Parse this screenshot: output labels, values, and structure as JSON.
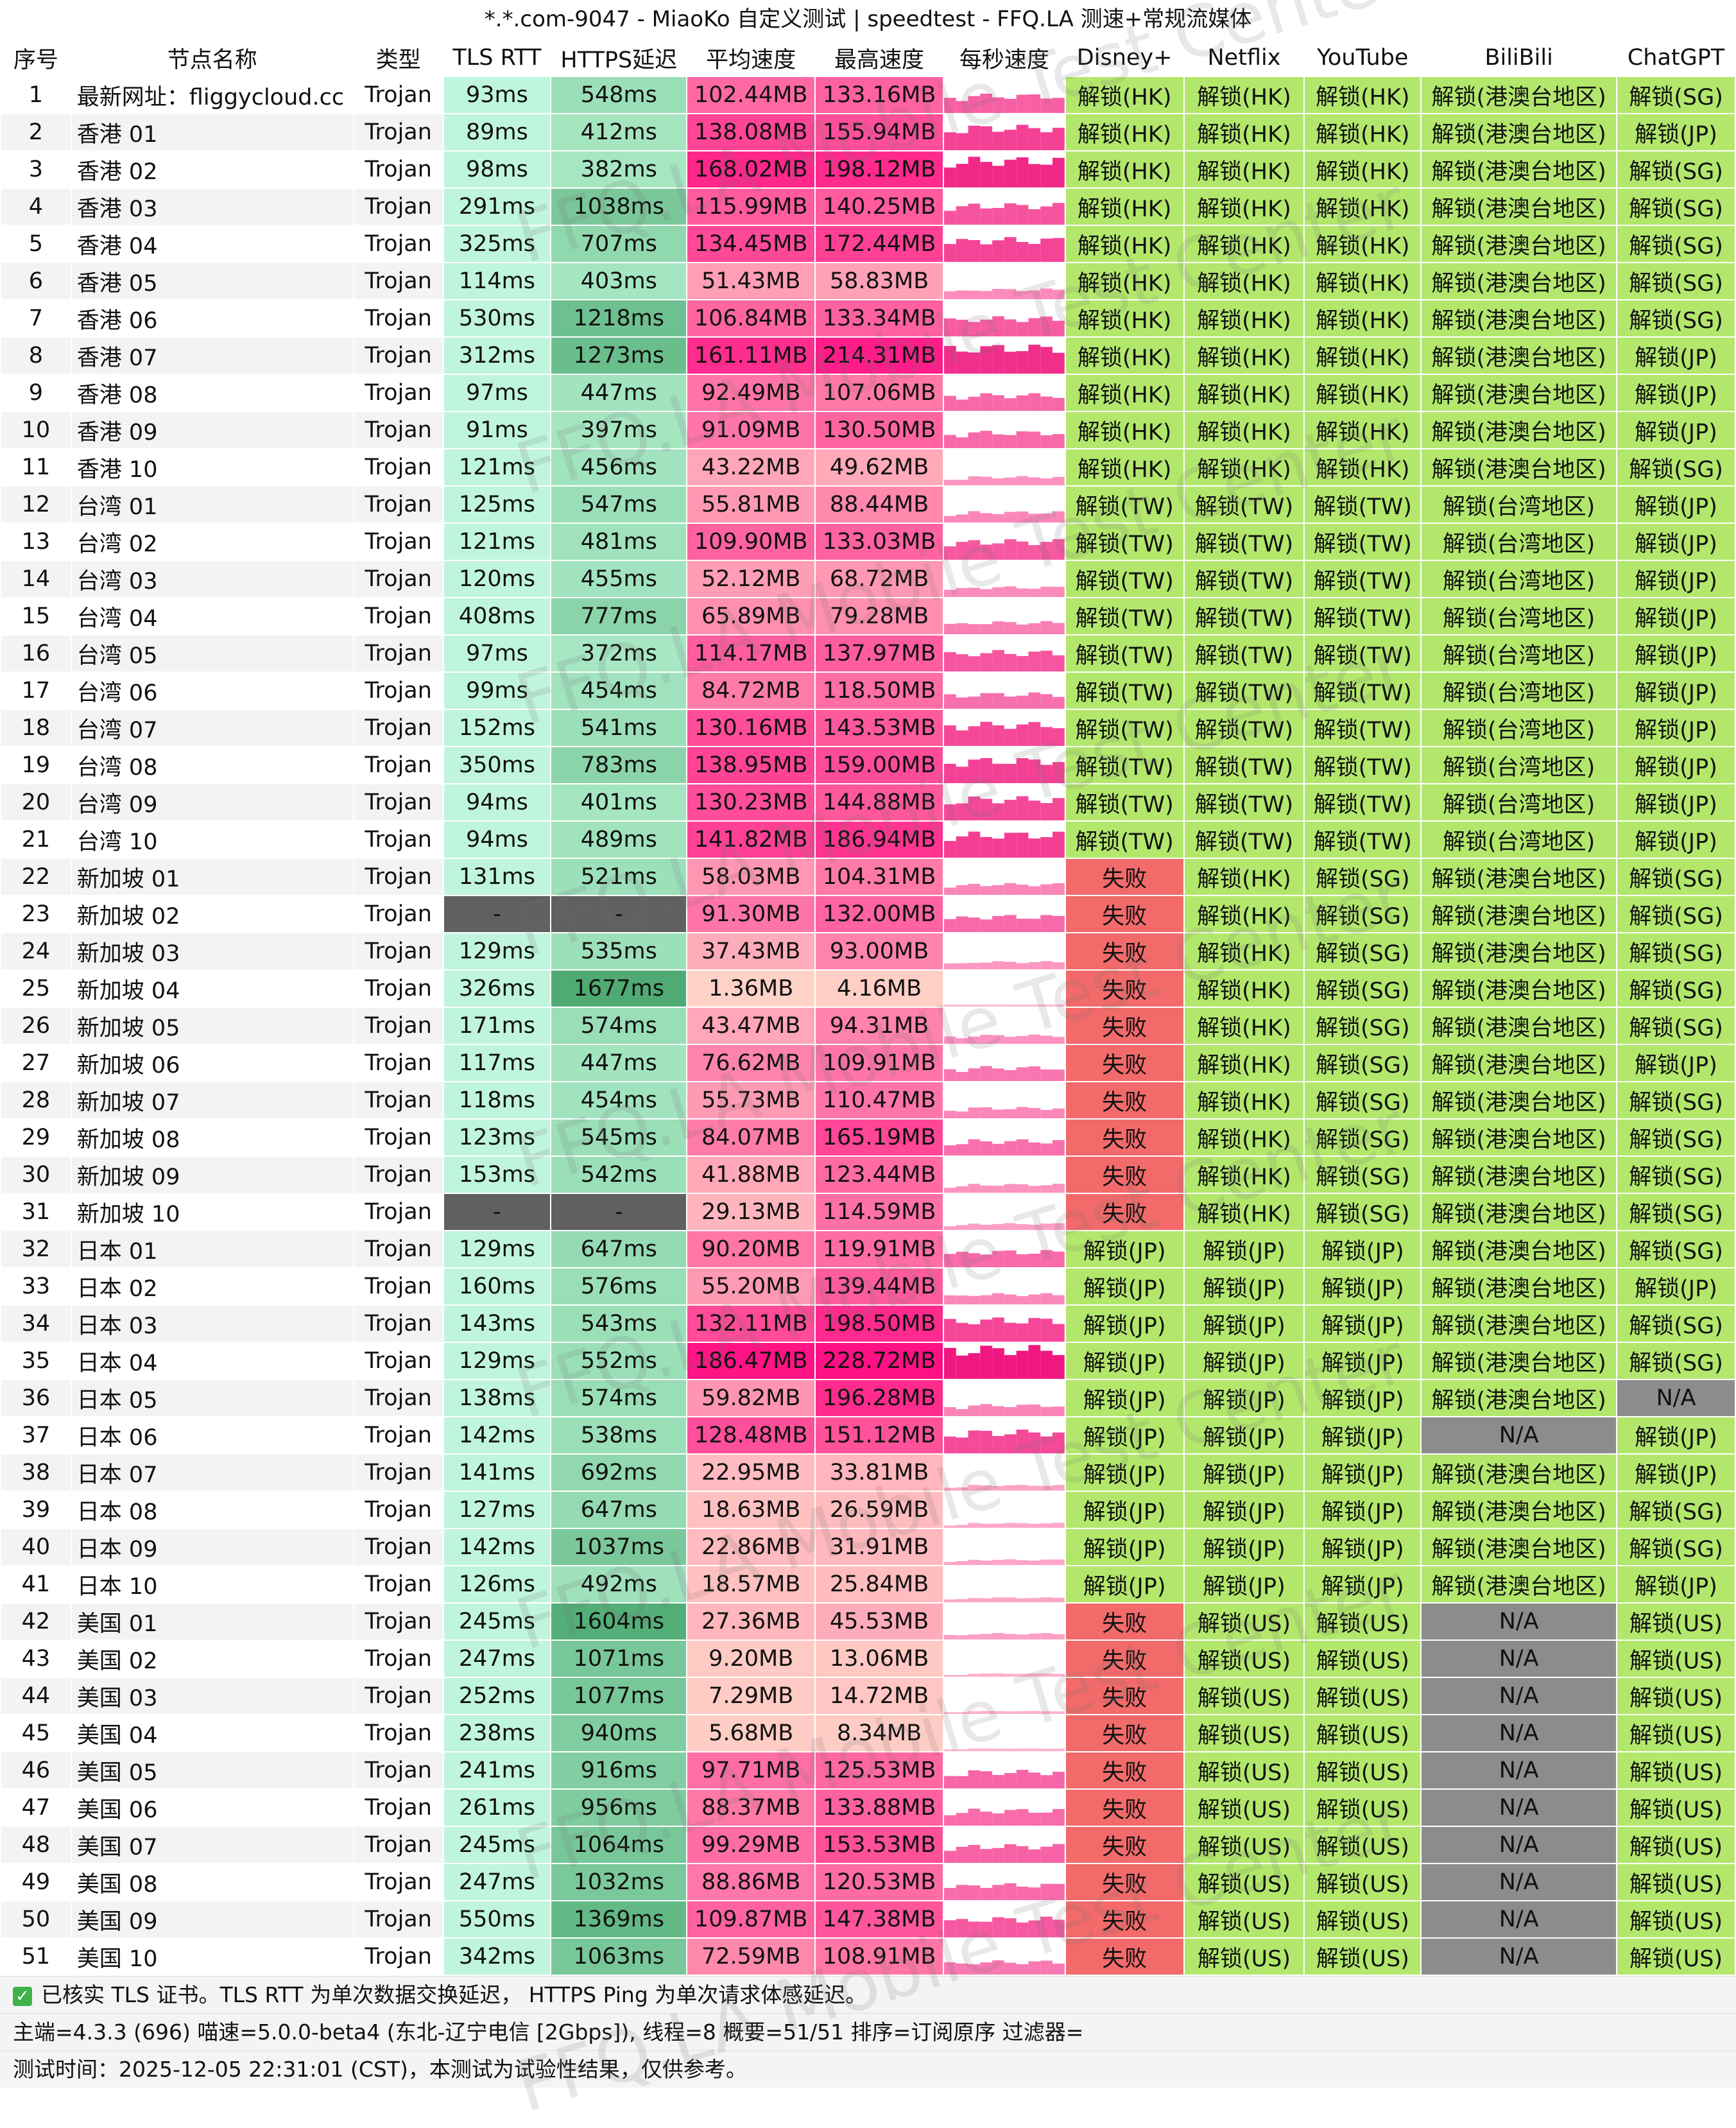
{
  "title": "*.*.com-9047 - MiaoKo 自定义测试 | speedtest - FFQ.LA 测速+常规流媒体",
  "columns": [
    "序号",
    "节点名称",
    "类型",
    "TLS RTT",
    "HTTPS延迟",
    "平均速度",
    "最高速度",
    "每秒速度",
    "Disney+",
    "Netflix",
    "YouTube",
    "BiliBili",
    "ChatGPT"
  ],
  "rows": [
    [
      "1",
      "最新网址：fliggycloud.cc",
      "Trojan",
      "93ms",
      "548ms",
      "102.44MB",
      "133.16MB",
      "解锁(HK)",
      "解锁(HK)",
      "解锁(HK)",
      "解锁(港澳台地区)",
      "解锁(SG)"
    ],
    [
      "2",
      "香港 01",
      "Trojan",
      "89ms",
      "412ms",
      "138.08MB",
      "155.94MB",
      "解锁(HK)",
      "解锁(HK)",
      "解锁(HK)",
      "解锁(港澳台地区)",
      "解锁(JP)"
    ],
    [
      "3",
      "香港 02",
      "Trojan",
      "98ms",
      "382ms",
      "168.02MB",
      "198.12MB",
      "解锁(HK)",
      "解锁(HK)",
      "解锁(HK)",
      "解锁(港澳台地区)",
      "解锁(SG)"
    ],
    [
      "4",
      "香港 03",
      "Trojan",
      "291ms",
      "1038ms",
      "115.99MB",
      "140.25MB",
      "解锁(HK)",
      "解锁(HK)",
      "解锁(HK)",
      "解锁(港澳台地区)",
      "解锁(SG)"
    ],
    [
      "5",
      "香港 04",
      "Trojan",
      "325ms",
      "707ms",
      "134.45MB",
      "172.44MB",
      "解锁(HK)",
      "解锁(HK)",
      "解锁(HK)",
      "解锁(港澳台地区)",
      "解锁(SG)"
    ],
    [
      "6",
      "香港 05",
      "Trojan",
      "114ms",
      "403ms",
      "51.43MB",
      "58.83MB",
      "解锁(HK)",
      "解锁(HK)",
      "解锁(HK)",
      "解锁(港澳台地区)",
      "解锁(SG)"
    ],
    [
      "7",
      "香港 06",
      "Trojan",
      "530ms",
      "1218ms",
      "106.84MB",
      "133.34MB",
      "解锁(HK)",
      "解锁(HK)",
      "解锁(HK)",
      "解锁(港澳台地区)",
      "解锁(SG)"
    ],
    [
      "8",
      "香港 07",
      "Trojan",
      "312ms",
      "1273ms",
      "161.11MB",
      "214.31MB",
      "解锁(HK)",
      "解锁(HK)",
      "解锁(HK)",
      "解锁(港澳台地区)",
      "解锁(JP)"
    ],
    [
      "9",
      "香港 08",
      "Trojan",
      "97ms",
      "447ms",
      "92.49MB",
      "107.06MB",
      "解锁(HK)",
      "解锁(HK)",
      "解锁(HK)",
      "解锁(港澳台地区)",
      "解锁(JP)"
    ],
    [
      "10",
      "香港 09",
      "Trojan",
      "91ms",
      "397ms",
      "91.09MB",
      "130.50MB",
      "解锁(HK)",
      "解锁(HK)",
      "解锁(HK)",
      "解锁(港澳台地区)",
      "解锁(JP)"
    ],
    [
      "11",
      "香港 10",
      "Trojan",
      "121ms",
      "456ms",
      "43.22MB",
      "49.62MB",
      "解锁(HK)",
      "解锁(HK)",
      "解锁(HK)",
      "解锁(港澳台地区)",
      "解锁(SG)"
    ],
    [
      "12",
      "台湾 01",
      "Trojan",
      "125ms",
      "547ms",
      "55.81MB",
      "88.44MB",
      "解锁(TW)",
      "解锁(TW)",
      "解锁(TW)",
      "解锁(台湾地区)",
      "解锁(JP)"
    ],
    [
      "13",
      "台湾 02",
      "Trojan",
      "121ms",
      "481ms",
      "109.90MB",
      "133.03MB",
      "解锁(TW)",
      "解锁(TW)",
      "解锁(TW)",
      "解锁(台湾地区)",
      "解锁(JP)"
    ],
    [
      "14",
      "台湾 03",
      "Trojan",
      "120ms",
      "455ms",
      "52.12MB",
      "68.72MB",
      "解锁(TW)",
      "解锁(TW)",
      "解锁(TW)",
      "解锁(台湾地区)",
      "解锁(JP)"
    ],
    [
      "15",
      "台湾 04",
      "Trojan",
      "408ms",
      "777ms",
      "65.89MB",
      "79.28MB",
      "解锁(TW)",
      "解锁(TW)",
      "解锁(TW)",
      "解锁(台湾地区)",
      "解锁(JP)"
    ],
    [
      "16",
      "台湾 05",
      "Trojan",
      "97ms",
      "372ms",
      "114.17MB",
      "137.97MB",
      "解锁(TW)",
      "解锁(TW)",
      "解锁(TW)",
      "解锁(台湾地区)",
      "解锁(JP)"
    ],
    [
      "17",
      "台湾 06",
      "Trojan",
      "99ms",
      "454ms",
      "84.72MB",
      "118.50MB",
      "解锁(TW)",
      "解锁(TW)",
      "解锁(TW)",
      "解锁(台湾地区)",
      "解锁(JP)"
    ],
    [
      "18",
      "台湾 07",
      "Trojan",
      "152ms",
      "541ms",
      "130.16MB",
      "143.53MB",
      "解锁(TW)",
      "解锁(TW)",
      "解锁(TW)",
      "解锁(台湾地区)",
      "解锁(JP)"
    ],
    [
      "19",
      "台湾 08",
      "Trojan",
      "350ms",
      "783ms",
      "138.95MB",
      "159.00MB",
      "解锁(TW)",
      "解锁(TW)",
      "解锁(TW)",
      "解锁(台湾地区)",
      "解锁(JP)"
    ],
    [
      "20",
      "台湾 09",
      "Trojan",
      "94ms",
      "401ms",
      "130.23MB",
      "144.88MB",
      "解锁(TW)",
      "解锁(TW)",
      "解锁(TW)",
      "解锁(台湾地区)",
      "解锁(JP)"
    ],
    [
      "21",
      "台湾 10",
      "Trojan",
      "94ms",
      "489ms",
      "141.82MB",
      "186.94MB",
      "解锁(TW)",
      "解锁(TW)",
      "解锁(TW)",
      "解锁(台湾地区)",
      "解锁(JP)"
    ],
    [
      "22",
      "新加坡 01",
      "Trojan",
      "131ms",
      "521ms",
      "58.03MB",
      "104.31MB",
      "失败",
      "解锁(HK)",
      "解锁(SG)",
      "解锁(港澳台地区)",
      "解锁(SG)"
    ],
    [
      "23",
      "新加坡 02",
      "Trojan",
      "-",
      "-",
      "91.30MB",
      "132.00MB",
      "失败",
      "解锁(HK)",
      "解锁(SG)",
      "解锁(港澳台地区)",
      "解锁(SG)"
    ],
    [
      "24",
      "新加坡 03",
      "Trojan",
      "129ms",
      "535ms",
      "37.43MB",
      "93.00MB",
      "失败",
      "解锁(HK)",
      "解锁(SG)",
      "解锁(港澳台地区)",
      "解锁(SG)"
    ],
    [
      "25",
      "新加坡 04",
      "Trojan",
      "326ms",
      "1677ms",
      "1.36MB",
      "4.16MB",
      "失败",
      "解锁(HK)",
      "解锁(SG)",
      "解锁(港澳台地区)",
      "解锁(SG)"
    ],
    [
      "26",
      "新加坡 05",
      "Trojan",
      "171ms",
      "574ms",
      "43.47MB",
      "94.31MB",
      "失败",
      "解锁(HK)",
      "解锁(SG)",
      "解锁(港澳台地区)",
      "解锁(SG)"
    ],
    [
      "27",
      "新加坡 06",
      "Trojan",
      "117ms",
      "447ms",
      "76.62MB",
      "109.91MB",
      "失败",
      "解锁(HK)",
      "解锁(SG)",
      "解锁(港澳台地区)",
      "解锁(JP)"
    ],
    [
      "28",
      "新加坡 07",
      "Trojan",
      "118ms",
      "454ms",
      "55.73MB",
      "110.47MB",
      "失败",
      "解锁(HK)",
      "解锁(SG)",
      "解锁(港澳台地区)",
      "解锁(SG)"
    ],
    [
      "29",
      "新加坡 08",
      "Trojan",
      "123ms",
      "545ms",
      "84.07MB",
      "165.19MB",
      "失败",
      "解锁(HK)",
      "解锁(SG)",
      "解锁(港澳台地区)",
      "解锁(SG)"
    ],
    [
      "30",
      "新加坡 09",
      "Trojan",
      "153ms",
      "542ms",
      "41.88MB",
      "123.44MB",
      "失败",
      "解锁(HK)",
      "解锁(SG)",
      "解锁(港澳台地区)",
      "解锁(SG)"
    ],
    [
      "31",
      "新加坡 10",
      "Trojan",
      "-",
      "-",
      "29.13MB",
      "114.59MB",
      "失败",
      "解锁(HK)",
      "解锁(SG)",
      "解锁(港澳台地区)",
      "解锁(SG)"
    ],
    [
      "32",
      "日本 01",
      "Trojan",
      "129ms",
      "647ms",
      "90.20MB",
      "119.91MB",
      "解锁(JP)",
      "解锁(JP)",
      "解锁(JP)",
      "解锁(港澳台地区)",
      "解锁(SG)"
    ],
    [
      "33",
      "日本 02",
      "Trojan",
      "160ms",
      "576ms",
      "55.20MB",
      "139.44MB",
      "解锁(JP)",
      "解锁(JP)",
      "解锁(JP)",
      "解锁(港澳台地区)",
      "解锁(JP)"
    ],
    [
      "34",
      "日本 03",
      "Trojan",
      "143ms",
      "543ms",
      "132.11MB",
      "198.50MB",
      "解锁(JP)",
      "解锁(JP)",
      "解锁(JP)",
      "解锁(港澳台地区)",
      "解锁(SG)"
    ],
    [
      "35",
      "日本 04",
      "Trojan",
      "129ms",
      "552ms",
      "186.47MB",
      "228.72MB",
      "解锁(JP)",
      "解锁(JP)",
      "解锁(JP)",
      "解锁(港澳台地区)",
      "解锁(SG)"
    ],
    [
      "36",
      "日本 05",
      "Trojan",
      "138ms",
      "574ms",
      "59.82MB",
      "196.28MB",
      "解锁(JP)",
      "解锁(JP)",
      "解锁(JP)",
      "解锁(港澳台地区)",
      "N/A"
    ],
    [
      "37",
      "日本 06",
      "Trojan",
      "142ms",
      "538ms",
      "128.48MB",
      "151.12MB",
      "解锁(JP)",
      "解锁(JP)",
      "解锁(JP)",
      "N/A",
      "解锁(JP)"
    ],
    [
      "38",
      "日本 07",
      "Trojan",
      "141ms",
      "692ms",
      "22.95MB",
      "33.81MB",
      "解锁(JP)",
      "解锁(JP)",
      "解锁(JP)",
      "解锁(港澳台地区)",
      "解锁(JP)"
    ],
    [
      "39",
      "日本 08",
      "Trojan",
      "127ms",
      "647ms",
      "18.63MB",
      "26.59MB",
      "解锁(JP)",
      "解锁(JP)",
      "解锁(JP)",
      "解锁(港澳台地区)",
      "解锁(SG)"
    ],
    [
      "40",
      "日本 09",
      "Trojan",
      "142ms",
      "1037ms",
      "22.86MB",
      "31.91MB",
      "解锁(JP)",
      "解锁(JP)",
      "解锁(JP)",
      "解锁(港澳台地区)",
      "解锁(SG)"
    ],
    [
      "41",
      "日本 10",
      "Trojan",
      "126ms",
      "492ms",
      "18.57MB",
      "25.84MB",
      "解锁(JP)",
      "解锁(JP)",
      "解锁(JP)",
      "解锁(港澳台地区)",
      "解锁(JP)"
    ],
    [
      "42",
      "美国 01",
      "Trojan",
      "245ms",
      "1604ms",
      "27.36MB",
      "45.53MB",
      "失败",
      "解锁(US)",
      "解锁(US)",
      "N/A",
      "解锁(US)"
    ],
    [
      "43",
      "美国 02",
      "Trojan",
      "247ms",
      "1071ms",
      "9.20MB",
      "13.06MB",
      "失败",
      "解锁(US)",
      "解锁(US)",
      "N/A",
      "解锁(US)"
    ],
    [
      "44",
      "美国 03",
      "Trojan",
      "252ms",
      "1077ms",
      "7.29MB",
      "14.72MB",
      "失败",
      "解锁(US)",
      "解锁(US)",
      "N/A",
      "解锁(US)"
    ],
    [
      "45",
      "美国 04",
      "Trojan",
      "238ms",
      "940ms",
      "5.68MB",
      "8.34MB",
      "失败",
      "解锁(US)",
      "解锁(US)",
      "N/A",
      "解锁(US)"
    ],
    [
      "46",
      "美国 05",
      "Trojan",
      "241ms",
      "916ms",
      "97.71MB",
      "125.53MB",
      "失败",
      "解锁(US)",
      "解锁(US)",
      "N/A",
      "解锁(US)"
    ],
    [
      "47",
      "美国 06",
      "Trojan",
      "261ms",
      "956ms",
      "88.37MB",
      "133.88MB",
      "失败",
      "解锁(US)",
      "解锁(US)",
      "N/A",
      "解锁(US)"
    ],
    [
      "48",
      "美国 07",
      "Trojan",
      "245ms",
      "1064ms",
      "99.29MB",
      "153.53MB",
      "失败",
      "解锁(US)",
      "解锁(US)",
      "N/A",
      "解锁(US)"
    ],
    [
      "49",
      "美国 08",
      "Trojan",
      "247ms",
      "1032ms",
      "88.86MB",
      "120.53MB",
      "失败",
      "解锁(US)",
      "解锁(US)",
      "N/A",
      "解锁(US)"
    ],
    [
      "50",
      "美国 09",
      "Trojan",
      "550ms",
      "1369ms",
      "109.87MB",
      "147.38MB",
      "失败",
      "解锁(US)",
      "解锁(US)",
      "N/A",
      "解锁(US)"
    ],
    [
      "51",
      "美国 10",
      "Trojan",
      "342ms",
      "1063ms",
      "72.59MB",
      "108.91MB",
      "失败",
      "解锁(US)",
      "解锁(US)",
      "N/A",
      "解锁(US)"
    ]
  ],
  "footer": {
    "line1": "已核实 TLS 证书。TLS RTT 为单次数据交换延迟， HTTPS Ping 为单次请求体感延迟。",
    "line2": "主端=4.3.3 (696) 喵速=5.0.0-beta4 (东北-辽宁电信 [2Gbps]), 线程=8 概要=51/51 排序=订阅原序 过滤器=",
    "line3": "测试时间：2025-12-05 22:31:01 (CST)，本测试为试验性结果，仅供参考。"
  },
  "watermark": "FFQ.LA Mobile Test Center",
  "colors": {
    "tls": "#bff5dc",
    "https_low": "#a8e8c4",
    "https_high": "#4daa72",
    "speed_low": "#ffd3c7",
    "speed_high": "#ff0f84",
    "unlock": "#b2e76c",
    "fail": "#f26a6a",
    "na": "#8c8c8c",
    "missing": "#606060"
  }
}
